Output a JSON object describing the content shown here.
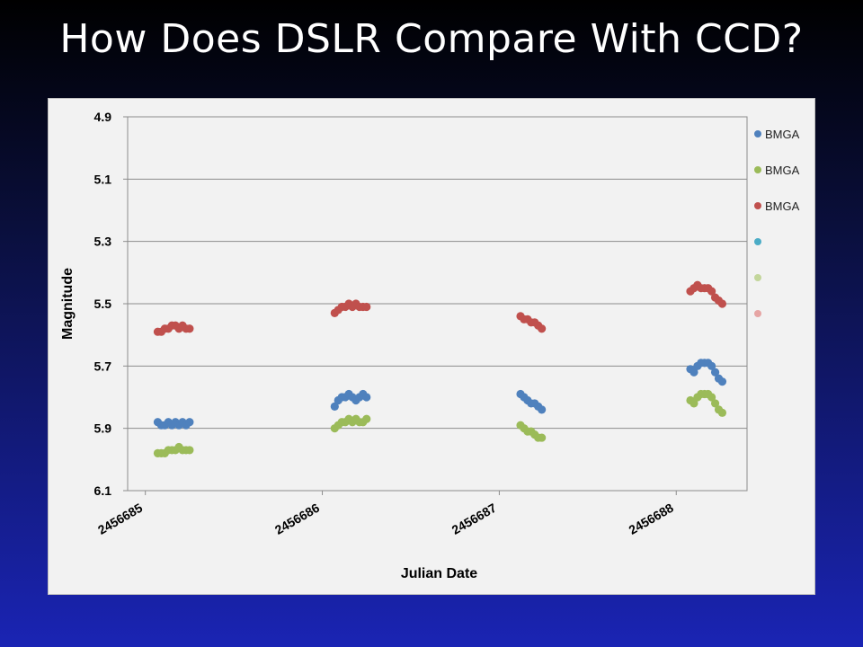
{
  "slide": {
    "title": "How Does DSLR Compare With CCD?"
  },
  "chart_data": {
    "type": "scatter",
    "title": "",
    "xlabel": "Julian Date",
    "ylabel": "Magnitude",
    "x_ticks": [
      "2456685",
      "2456686",
      "2456687",
      "2456688"
    ],
    "y_ticks": [
      "4.9",
      "5.1",
      "5.3",
      "5.5",
      "5.7",
      "5.9",
      "6.1"
    ],
    "xlim": [
      2456684.9,
      2456688.4
    ],
    "ylim": [
      6.1,
      4.9
    ],
    "y_inverted": true,
    "grid": "horizontal",
    "legend_position": "right",
    "series": [
      {
        "name": "BMGA",
        "color": "#4f81bd",
        "x": [
          2456685.07,
          2456685.09,
          2456685.11,
          2456685.13,
          2456685.15,
          2456685.17,
          2456685.19,
          2456685.21,
          2456685.23,
          2456685.25,
          2456686.07,
          2456686.09,
          2456686.11,
          2456686.13,
          2456686.15,
          2456686.17,
          2456686.19,
          2456686.21,
          2456686.23,
          2456686.25,
          2456687.12,
          2456687.14,
          2456687.16,
          2456687.18,
          2456687.2,
          2456687.22,
          2456687.24,
          2456688.08,
          2456688.1,
          2456688.12,
          2456688.14,
          2456688.16,
          2456688.18,
          2456688.2,
          2456688.22,
          2456688.24,
          2456688.26
        ],
        "y": [
          5.88,
          5.89,
          5.89,
          5.88,
          5.89,
          5.88,
          5.89,
          5.88,
          5.89,
          5.88,
          5.83,
          5.81,
          5.8,
          5.8,
          5.79,
          5.8,
          5.81,
          5.8,
          5.79,
          5.8,
          5.79,
          5.8,
          5.81,
          5.82,
          5.82,
          5.83,
          5.84,
          5.71,
          5.72,
          5.7,
          5.69,
          5.69,
          5.69,
          5.7,
          5.72,
          5.74,
          5.75
        ]
      },
      {
        "name": "BMGA",
        "color": "#9bbb59",
        "x": [
          2456685.07,
          2456685.09,
          2456685.11,
          2456685.13,
          2456685.15,
          2456685.17,
          2456685.19,
          2456685.21,
          2456685.23,
          2456685.25,
          2456686.07,
          2456686.09,
          2456686.11,
          2456686.13,
          2456686.15,
          2456686.17,
          2456686.19,
          2456686.21,
          2456686.23,
          2456686.25,
          2456687.12,
          2456687.14,
          2456687.16,
          2456687.18,
          2456687.2,
          2456687.22,
          2456687.24,
          2456688.08,
          2456688.1,
          2456688.12,
          2456688.14,
          2456688.16,
          2456688.18,
          2456688.2,
          2456688.22,
          2456688.24,
          2456688.26
        ],
        "y": [
          5.98,
          5.98,
          5.98,
          5.97,
          5.97,
          5.97,
          5.96,
          5.97,
          5.97,
          5.97,
          5.9,
          5.89,
          5.88,
          5.88,
          5.87,
          5.88,
          5.87,
          5.88,
          5.88,
          5.87,
          5.89,
          5.9,
          5.91,
          5.91,
          5.92,
          5.93,
          5.93,
          5.81,
          5.82,
          5.8,
          5.79,
          5.79,
          5.79,
          5.8,
          5.82,
          5.84,
          5.85
        ]
      },
      {
        "name": "BMGA",
        "color": "#c0504d",
        "x": [
          2456685.07,
          2456685.09,
          2456685.11,
          2456685.13,
          2456685.15,
          2456685.17,
          2456685.19,
          2456685.21,
          2456685.23,
          2456685.25,
          2456686.07,
          2456686.09,
          2456686.11,
          2456686.13,
          2456686.15,
          2456686.17,
          2456686.19,
          2456686.21,
          2456686.23,
          2456686.25,
          2456687.12,
          2456687.14,
          2456687.16,
          2456687.18,
          2456687.2,
          2456687.22,
          2456687.24,
          2456688.08,
          2456688.1,
          2456688.12,
          2456688.14,
          2456688.16,
          2456688.18,
          2456688.2,
          2456688.22,
          2456688.24,
          2456688.26
        ],
        "y": [
          5.59,
          5.59,
          5.58,
          5.58,
          5.57,
          5.57,
          5.58,
          5.57,
          5.58,
          5.58,
          5.53,
          5.52,
          5.51,
          5.51,
          5.5,
          5.51,
          5.5,
          5.51,
          5.51,
          5.51,
          5.54,
          5.55,
          5.55,
          5.56,
          5.56,
          5.57,
          5.58,
          5.46,
          5.45,
          5.44,
          5.45,
          5.45,
          5.45,
          5.46,
          5.48,
          5.49,
          5.5
        ]
      },
      {
        "name": "",
        "color": "#4bacc6",
        "x": [],
        "y": []
      },
      {
        "name": "",
        "color": "#c3d69b",
        "x": [],
        "y": []
      },
      {
        "name": "",
        "color": "#e6a5a4",
        "x": [],
        "y": []
      }
    ]
  }
}
